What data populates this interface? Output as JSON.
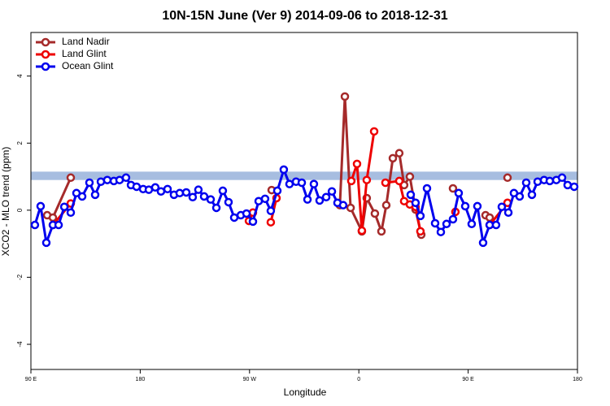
{
  "chart_data": {
    "type": "line",
    "title": "10N-15N June (Ver 9)   2014-09-06 to 2018-12-31",
    "xlabel": "Longitude",
    "ylabel": "XCO2 - MLO trend (ppm)",
    "xlim": [
      90,
      540
    ],
    "ylim": [
      -4.75,
      5.3
    ],
    "xticks": [
      {
        "value": 90,
        "label": "90 E"
      },
      180,
      {
        "value": 270,
        "label": "90 W"
      },
      {
        "value": 360,
        "label": "0"
      },
      {
        "value": 450,
        "label": "90 E"
      },
      {
        "value": 540,
        "label": "180"
      }
    ],
    "yticks": [
      -4,
      -2,
      0,
      2,
      4
    ],
    "band": [
      0.9,
      1.15
    ],
    "band_color": "#a7bde0",
    "legend": "top-left",
    "series": [
      {
        "name": "Land Nadir",
        "color": "#a52a2a",
        "x": [
          103.4,
          108.1,
          122.8,
          null,
          288.2,
          null,
          344.4,
          348.5,
          353.2,
          362.5,
          366.5,
          373.2,
          378.6,
          382.6,
          388.0,
          393.3,
          397.3,
          402.0,
          406.7,
          411.4,
          null,
          437.5,
          null,
          464.3,
          467.7,
          null,
          482.4
        ],
        "values": [
          -0.15,
          -0.22,
          0.97,
          null,
          0.6,
          null,
          0.15,
          3.39,
          0.07,
          -0.63,
          0.36,
          -0.1,
          -0.63,
          0.15,
          1.55,
          1.7,
          0.75,
          1.0,
          0.02,
          -0.73,
          null,
          0.65,
          null,
          -0.15,
          -0.22,
          null,
          0.97
        ]
      },
      {
        "name": "Land Glint",
        "color": "#ee0000",
        "x": [
          108.1,
          122.8,
          null,
          269.5,
          272.8,
          null,
          287.5,
          292.2,
          null,
          353.8,
          358.5,
          362.5,
          366.5,
          372.6,
          null,
          381.9,
          393.3,
          397.3,
          402.0,
          406.7,
          410.7,
          null,
          439.5,
          null,
          467.7,
          482.4
        ],
        "values": [
          -0.44,
          0.2,
          null,
          -0.32,
          -0.07,
          null,
          -0.36,
          0.36,
          null,
          0.87,
          1.38,
          -0.61,
          0.9,
          2.35,
          null,
          0.82,
          0.87,
          0.27,
          0.17,
          0.1,
          -0.63,
          null,
          -0.05,
          null,
          -0.44,
          0.22
        ]
      },
      {
        "name": "Ocean Glint",
        "color": "#0000ee",
        "x": [
          93.3,
          98.0,
          102.7,
          108.1,
          112.8,
          117.5,
          122.8,
          127.5,
          132.2,
          138.2,
          142.9,
          147.6,
          152.9,
          158.3,
          163.0,
          168.3,
          172.4,
          177.0,
          182.4,
          187.1,
          192.4,
          197.1,
          202.5,
          207.8,
          212.5,
          217.9,
          223.2,
          227.9,
          232.6,
          238.0,
          242.7,
          248.0,
          252.7,
          257.4,
          262.8,
          267.5,
          272.8,
          277.5,
          282.8,
          287.5,
          292.9,
          298.2,
          302.9,
          308.3,
          313.0,
          317.7,
          323.0,
          327.7,
          333.1,
          337.8,
          342.4,
          347.1,
          null,
          402.7,
          406.7,
          410.7,
          416.1,
          422.8,
          427.5,
          432.2,
          437.5,
          442.2,
          447.6,
          452.9,
          457.6,
          462.3,
          467.7,
          473.0,
          477.7,
          483.1,
          487.7,
          492.4,
          497.8,
          502.5,
          507.2,
          512.5,
          517.2,
          522.6,
          527.3,
          531.9,
          537.3
        ],
        "values": [
          -0.44,
          0.12,
          -0.97,
          -0.44,
          -0.44,
          0.1,
          -0.07,
          0.51,
          0.41,
          0.82,
          0.46,
          0.85,
          0.9,
          0.87,
          0.9,
          0.97,
          0.75,
          0.7,
          0.63,
          0.61,
          0.68,
          0.56,
          0.63,
          0.46,
          0.51,
          0.53,
          0.39,
          0.61,
          0.41,
          0.32,
          0.07,
          0.58,
          0.24,
          -0.22,
          -0.15,
          -0.1,
          -0.34,
          0.27,
          0.34,
          -0.02,
          0.58,
          1.21,
          0.78,
          0.85,
          0.82,
          0.32,
          0.78,
          0.29,
          0.39,
          0.56,
          0.22,
          0.15,
          null,
          0.46,
          0.22,
          -0.17,
          0.65,
          -0.39,
          -0.65,
          -0.41,
          -0.27,
          0.51,
          0.12,
          -0.41,
          0.12,
          -0.97,
          -0.44,
          -0.44,
          0.1,
          -0.07,
          0.51,
          0.41,
          0.82,
          0.46,
          0.85,
          0.9,
          0.87,
          0.9,
          0.97,
          0.75,
          0.7
        ]
      }
    ]
  }
}
